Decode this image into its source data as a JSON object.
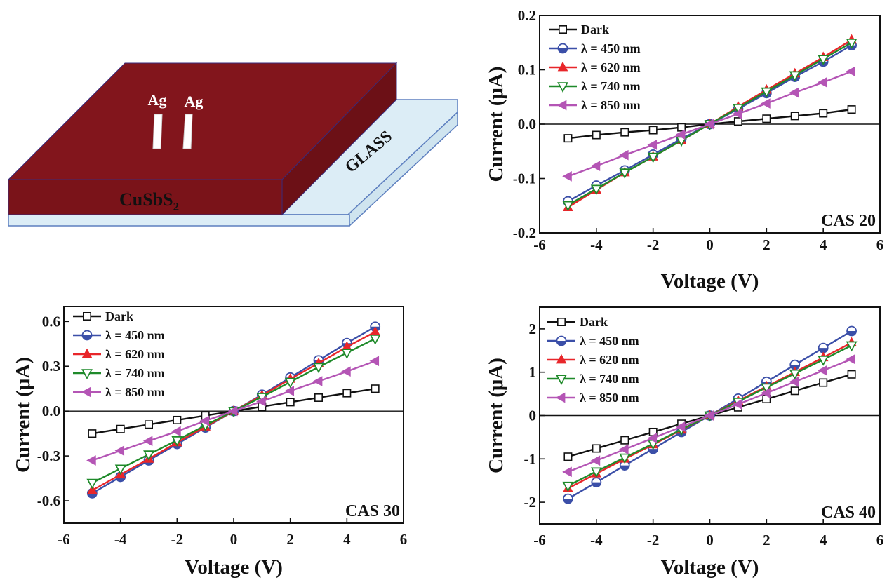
{
  "device": {
    "electrode_labels": [
      "Ag",
      "Ag"
    ],
    "film_label_main": "CuSbS",
    "film_label_sub": "2",
    "substrate_label": "GLASS",
    "colors": {
      "film_top": "#82151c",
      "film_front": "#7a1319",
      "film_side": "#6c1016",
      "glass": "#dcedf6",
      "glass_stroke": "#5d7fbf"
    }
  },
  "series_styles": [
    {
      "name": "Dark",
      "color": "#111111",
      "marker": "square-open"
    },
    {
      "name": "λ = 450 nm",
      "color": "#3b4fa8",
      "marker": "circle-half"
    },
    {
      "name": "λ = 620 nm",
      "color": "#e8262a",
      "marker": "triangle-up"
    },
    {
      "name": "λ = 740 nm",
      "color": "#1f8a2a",
      "marker": "triangle-down-open"
    },
    {
      "name": "λ = 850 nm",
      "color": "#b455b5",
      "marker": "triangle-left"
    }
  ],
  "chart_data": [
    {
      "type": "line",
      "tag": "CAS 20",
      "xlabel": "Voltage (V)",
      "ylabel": "Current (μA)",
      "xlim": [
        -6,
        6
      ],
      "ylim": [
        -0.2,
        0.2
      ],
      "xticks": [
        -6,
        -4,
        -2,
        0,
        2,
        4,
        6
      ],
      "yticks": [
        0.2,
        0.1,
        0.0,
        -0.1,
        -0.2
      ],
      "ytick_labels": [
        "0.2",
        "0.1",
        "0.0",
        "-0.1",
        "-0.2"
      ],
      "legend_position": "top-left",
      "x": [
        -5,
        -4,
        -3,
        -2,
        -1,
        0,
        1,
        2,
        3,
        4,
        5
      ],
      "series": [
        {
          "name": "Dark",
          "values": [
            -0.026,
            -0.02,
            -0.015,
            -0.011,
            -0.006,
            0,
            0.005,
            0.01,
            0.015,
            0.02,
            0.027
          ]
        },
        {
          "name": "λ = 450 nm",
          "values": [
            -0.142,
            -0.113,
            -0.085,
            -0.056,
            -0.027,
            0,
            0.028,
            0.057,
            0.087,
            0.115,
            0.145
          ]
        },
        {
          "name": "λ = 620 nm",
          "values": [
            -0.153,
            -0.121,
            -0.089,
            -0.06,
            -0.03,
            0,
            0.032,
            0.063,
            0.093,
            0.123,
            0.155
          ]
        },
        {
          "name": "λ = 740 nm",
          "values": [
            -0.149,
            -0.119,
            -0.089,
            -0.06,
            -0.03,
            0,
            0.03,
            0.06,
            0.09,
            0.12,
            0.15
          ]
        },
        {
          "name": "λ = 850 nm",
          "values": [
            -0.096,
            -0.077,
            -0.057,
            -0.038,
            -0.019,
            0,
            0.019,
            0.038,
            0.058,
            0.077,
            0.097
          ]
        }
      ]
    },
    {
      "type": "line",
      "tag": "CAS 30",
      "xlabel": "Voltage (V)",
      "ylabel": "Current (μA)",
      "xlim": [
        -6,
        6
      ],
      "ylim": [
        -0.75,
        0.7
      ],
      "xticks": [
        -6,
        -4,
        -2,
        0,
        2,
        4,
        6
      ],
      "yticks": [
        0.6,
        0.3,
        0.0,
        -0.3,
        -0.6
      ],
      "ytick_labels": [
        "0.6",
        "0.3",
        "0.0",
        "-0.3",
        "-0.6"
      ],
      "legend_position": "top-left",
      "x": [
        -5,
        -4,
        -3,
        -2,
        -1,
        0,
        1,
        2,
        3,
        4,
        5
      ],
      "series": [
        {
          "name": "Dark",
          "values": [
            -0.15,
            -0.12,
            -0.09,
            -0.06,
            -0.03,
            0,
            0.03,
            0.06,
            0.09,
            0.12,
            0.15
          ]
        },
        {
          "name": "λ = 450 nm",
          "values": [
            -0.55,
            -0.44,
            -0.33,
            -0.22,
            -0.11,
            0,
            0.11,
            0.225,
            0.34,
            0.455,
            0.565
          ]
        },
        {
          "name": "λ = 620 nm",
          "values": [
            -0.53,
            -0.425,
            -0.32,
            -0.21,
            -0.105,
            0,
            0.105,
            0.215,
            0.32,
            0.43,
            0.53
          ]
        },
        {
          "name": "λ = 740 nm",
          "values": [
            -0.48,
            -0.385,
            -0.29,
            -0.195,
            -0.095,
            0,
            0.095,
            0.195,
            0.295,
            0.39,
            0.485
          ]
        },
        {
          "name": "λ = 850 nm",
          "values": [
            -0.33,
            -0.265,
            -0.2,
            -0.135,
            -0.065,
            0,
            0.065,
            0.135,
            0.2,
            0.265,
            0.335
          ]
        }
      ]
    },
    {
      "type": "line",
      "tag": "CAS 40",
      "xlabel": "Voltage (V)",
      "ylabel": "Current (μA)",
      "xlim": [
        -6,
        6
      ],
      "ylim": [
        -2.5,
        2.5
      ],
      "xticks": [
        -6,
        -4,
        -2,
        0,
        2,
        4,
        6
      ],
      "yticks": [
        2,
        1,
        0,
        -1,
        -2
      ],
      "ytick_labels": [
        "2",
        "1",
        "0",
        "-1",
        "-2"
      ],
      "legend_position": "top-left",
      "x": [
        -5,
        -4,
        -3,
        -2,
        -1,
        0,
        1,
        2,
        3,
        4,
        5
      ],
      "series": [
        {
          "name": "Dark",
          "values": [
            -0.95,
            -0.76,
            -0.57,
            -0.38,
            -0.19,
            0,
            0.19,
            0.38,
            0.57,
            0.76,
            0.95
          ]
        },
        {
          "name": "λ = 450 nm",
          "values": [
            -1.92,
            -1.54,
            -1.15,
            -0.77,
            -0.38,
            0,
            0.39,
            0.78,
            1.17,
            1.56,
            1.95
          ]
        },
        {
          "name": "λ = 620 nm",
          "values": [
            -1.68,
            -1.34,
            -1.0,
            -0.67,
            -0.33,
            0,
            0.34,
            0.67,
            1.0,
            1.34,
            1.68
          ]
        },
        {
          "name": "λ = 740 nm",
          "values": [
            -1.62,
            -1.29,
            -0.97,
            -0.65,
            -0.32,
            0,
            0.32,
            0.65,
            0.97,
            1.29,
            1.62
          ]
        },
        {
          "name": "λ = 850 nm",
          "values": [
            -1.3,
            -1.04,
            -0.78,
            -0.52,
            -0.26,
            0,
            0.26,
            0.52,
            0.78,
            1.04,
            1.3
          ]
        }
      ]
    }
  ]
}
